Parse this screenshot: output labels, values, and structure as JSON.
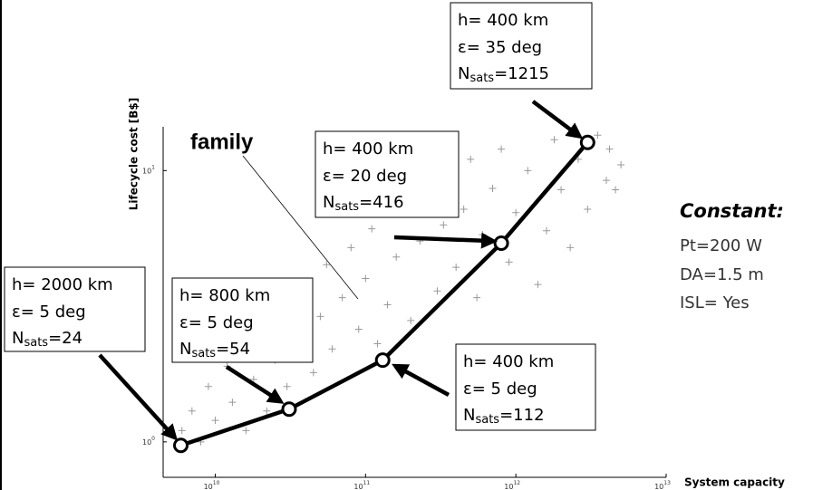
{
  "chart_data": {
    "type": "scatter",
    "x_label": "System capacity",
    "y_label": "Lifecycle cost [B$]",
    "log_x": true,
    "log_y": true,
    "xlim": [
      4500000000,
      10000000000000
    ],
    "ylim": [
      0.74,
      14.5
    ],
    "xticks": [
      {
        "value": 10000000000,
        "label": "10",
        "exponent": "10"
      },
      {
        "value": 100000000000,
        "label": "10",
        "exponent": "11"
      },
      {
        "value": 1000000000000,
        "label": "10",
        "exponent": "12"
      },
      {
        "value": 10000000000000,
        "label": "10",
        "exponent": "13"
      }
    ],
    "yticks": [
      {
        "value": 1,
        "label": "10",
        "exponent": "0"
      },
      {
        "value": 10,
        "label": "10",
        "exponent": "1"
      }
    ],
    "cloud_color": "#999999",
    "x": [
      6000000000,
      7000000000,
      8000000000,
      9000000000,
      10000000000,
      12000000000,
      13000000000,
      15000000000,
      16000000000,
      18000000000,
      20000000000,
      22000000000,
      25000000000,
      28000000000,
      30000000000,
      35000000000,
      40000000000,
      45000000000,
      50000000000,
      55000000000,
      60000000000,
      70000000000,
      80000000000,
      90000000000,
      100000000000,
      110000000000,
      120000000000,
      140000000000,
      160000000000,
      180000000000,
      200000000000,
      230000000000,
      260000000000,
      300000000000,
      330000000000,
      370000000000,
      400000000000,
      450000000000,
      500000000000,
      550000000000,
      600000000000,
      700000000000,
      800000000000,
      900000000000,
      1000000000000,
      1200000000000,
      1400000000000,
      1600000000000,
      1800000000000,
      2000000000000,
      2300000000000,
      2600000000000,
      3000000000000,
      3500000000000,
      4000000000000,
      4200000000000,
      4600000000000,
      5000000000000
    ],
    "y": [
      1.1,
      1.3,
      1.0,
      1.6,
      1.2,
      1.9,
      1.4,
      2.2,
      1.1,
      1.7,
      2.6,
      1.3,
      2.0,
      3.2,
      1.6,
      2.4,
      3.8,
      1.8,
      2.9,
      4.5,
      2.2,
      3.4,
      5.2,
      2.6,
      4.0,
      6.1,
      2.3,
      3.2,
      4.8,
      7.0,
      2.8,
      5.5,
      8.2,
      3.6,
      6.3,
      9.5,
      4.4,
      7.2,
      11,
      3.4,
      5.8,
      8.6,
      12,
      4.6,
      7.0,
      10,
      3.8,
      6.0,
      13,
      8.5,
      5.2,
      11,
      7.2,
      13.5,
      9.2,
      12,
      8.5,
      10.5
    ],
    "optimal": {
      "color": "#000000",
      "x": [
        5900000000,
        31000000000,
        130000000000,
        800000000000,
        3000000000000
      ],
      "y": [
        0.97,
        1.32,
        2.0,
        5.4,
        12.7
      ]
    },
    "family_label": "family",
    "annotations": [
      {
        "h": "h= 400 km",
        "eps": "ε= 35 deg",
        "n": "N",
        "n_sub": "sats",
        "n_value": "=1215"
      },
      {
        "h": "h= 400 km",
        "eps": "ε= 20 deg",
        "n": "N",
        "n_sub": "sats",
        "n_value": "=416"
      },
      {
        "h": "h= 2000 km",
        "eps": "ε= 5 deg",
        "n": "N",
        "n_sub": "sats",
        "n_value": "=24"
      },
      {
        "h": "h= 800 km",
        "eps": "ε= 5 deg",
        "n": "N",
        "n_sub": "sats",
        "n_value": "=54"
      },
      {
        "h": "h= 400 km",
        "eps": "ε= 5 deg",
        "n": "N",
        "n_sub": "sats",
        "n_value": "=112"
      }
    ],
    "constants": {
      "title": "Constant:",
      "lines": [
        "Pt=200 W",
        "DA=1.5 m",
        "ISL= Yes"
      ]
    }
  }
}
